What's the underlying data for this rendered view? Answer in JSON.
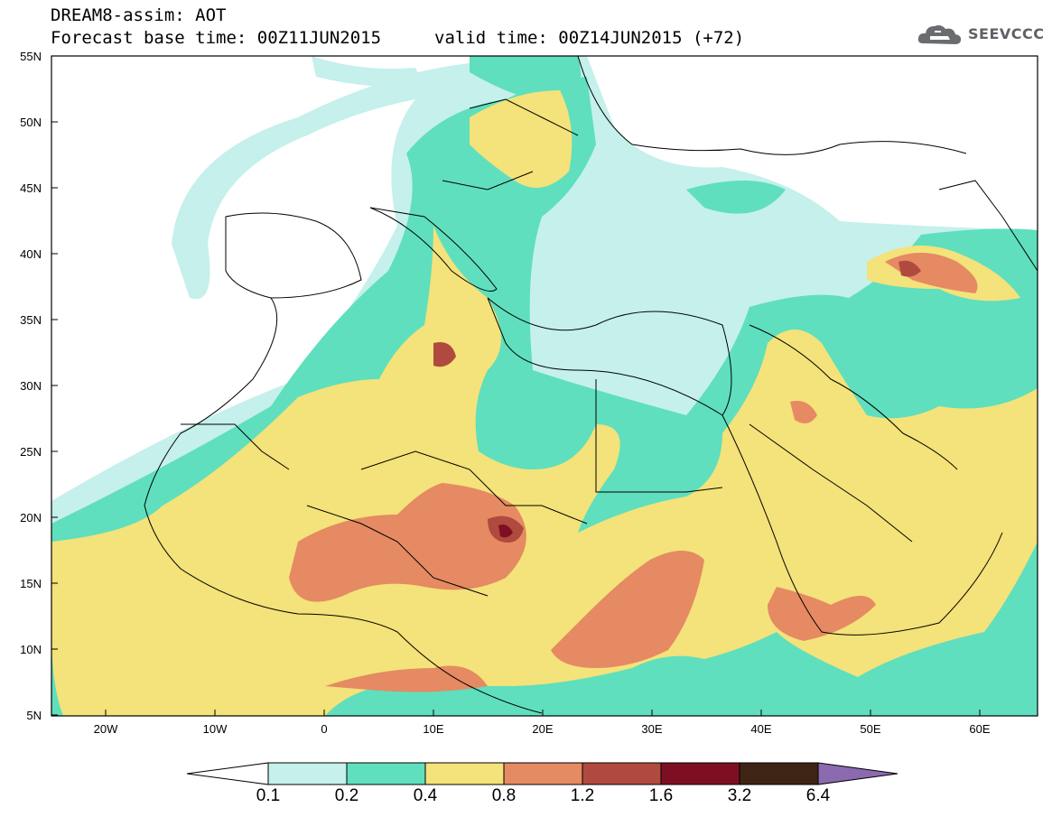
{
  "header": {
    "model_title": "DREAM8-assim: AOT",
    "base_time": "Forecast base time: 00Z11JUN2015",
    "valid_time": "valid time: 00Z14JUN2015 (+72)"
  },
  "logo": {
    "text": "SEEVCCC",
    "icon": "cloud-icon"
  },
  "map": {
    "lat_labels": [
      "55N",
      "50N",
      "45N",
      "40N",
      "35N",
      "30N",
      "25N",
      "20N",
      "15N",
      "10N",
      "5N"
    ],
    "lon_labels": [
      "20W",
      "10W",
      "0",
      "10E",
      "20E",
      "30E",
      "40E",
      "50E",
      "60E"
    ]
  },
  "colorbar": {
    "levels": [
      "0.1",
      "0.2",
      "0.4",
      "0.8",
      "1.2",
      "1.6",
      "3.2",
      "6.4"
    ],
    "colors": [
      "#ffffff",
      "#c5f0eb",
      "#5fdfbd",
      "#f4e27a",
      "#e58a62",
      "#b04a3e",
      "#7e0f22",
      "#3e2414",
      "#8b6ab0"
    ]
  }
}
